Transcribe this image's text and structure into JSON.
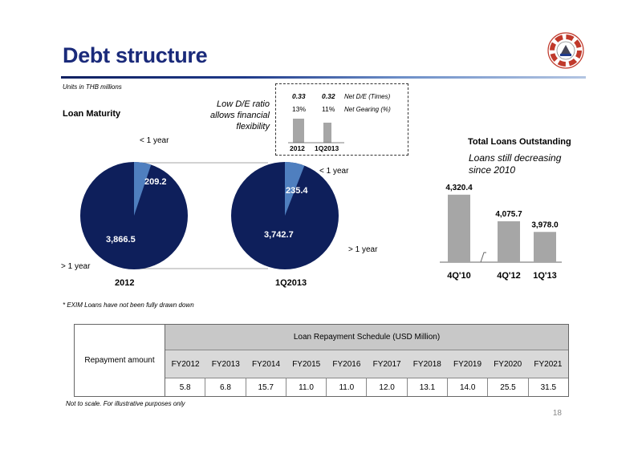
{
  "title": "Debt structure",
  "units": "Units in THB millions",
  "loan_maturity": {
    "heading": "Loan Maturity",
    "lt1_label": "< 1 year",
    "gt1_label": "> 1 year",
    "pie_2012": {
      "period": "2012",
      "short": 209.2,
      "long": 3866.5,
      "short_text": "209.2",
      "long_text": "3,866.5"
    },
    "pie_1q13": {
      "period": "1Q2013",
      "short": 235.4,
      "long": 3742.7,
      "short_text": "235.4",
      "long_text": "3,742.7"
    },
    "colors": {
      "short": "#4f7fbf",
      "long": "#0e1f5b"
    }
  },
  "de_box": {
    "note_line1": "Low D/E ratio",
    "note_line2": "allows financial",
    "note_line3": "flexibility",
    "de_2012": "0.33",
    "de_1q13": "0.32",
    "de_label": "Net D/E (Times)",
    "gear_2012": "13%",
    "gear_1q13": "11%",
    "gear_label": "Net Gearing (%)",
    "period_2012": "2012",
    "period_1q13": "1Q2013"
  },
  "total_loans": {
    "heading": "Total Loans Outstanding",
    "note_line1": "Loans still decreasing",
    "note_line2": "since 2010"
  },
  "chart_data": {
    "type": "bar",
    "categories": [
      "4Q'10",
      "4Q'12",
      "1Q'13"
    ],
    "values": [
      4320.4,
      4075.7,
      3978.0
    ],
    "value_labels": [
      "4,320.4",
      "4,075.7",
      "3,978.0"
    ],
    "title": "Total Loans Outstanding",
    "xlabel": "",
    "ylabel": "",
    "axis_break": true
  },
  "footnote_exim": "* EXIM Loans have not been fully drawn down",
  "table": {
    "row_label": "Repayment amount",
    "header": "Loan Repayment Schedule (USD Million)",
    "years": [
      "FY2012",
      "FY2013",
      "FY2014",
      "FY2015",
      "FY2016",
      "FY2017",
      "FY2018",
      "FY2019",
      "FY2020",
      "FY2021"
    ],
    "values": [
      "5.8",
      "6.8",
      "15.7",
      "11.0",
      "11.0",
      "12.0",
      "13.1",
      "14.0",
      "25.5",
      "31.5"
    ]
  },
  "scale_note": "Not to scale.  For illustrative purposes only",
  "page_number": "18",
  "logo": "company-lifebuoy-logo"
}
